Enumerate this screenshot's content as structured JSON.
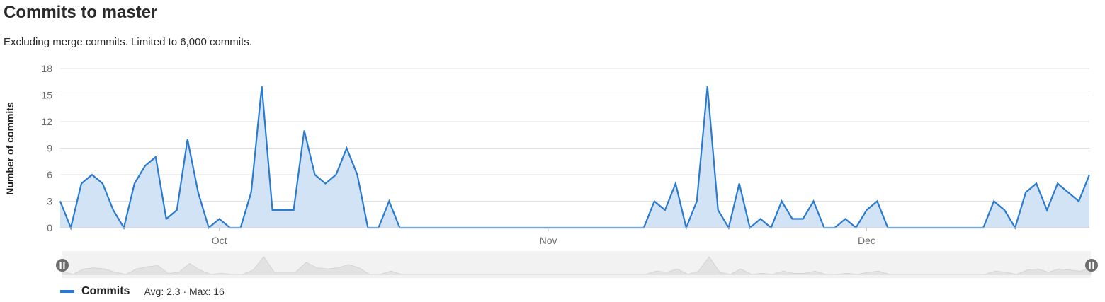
{
  "title": "Commits to master",
  "subtitle": "Excluding merge commits. Limited to 6,000 commits.",
  "colors": {
    "line": "#2a7ad0",
    "area": "#d2e3f5",
    "grid": "#e0e0e0",
    "navigator_bg": "#f2f2f2",
    "navigator_area": "#e2e2e2"
  },
  "legend": {
    "series_name": "Commits",
    "stats": "Avg: 2.3 · Max: 16"
  },
  "navigator": {
    "left_handle_icon": "pause-handle-icon",
    "right_handle_icon": "pause-handle-icon"
  },
  "chart_data": {
    "type": "area",
    "ylabel": "Number of commits",
    "xlabel": "",
    "ylim": [
      0,
      18
    ],
    "yticks": [
      0,
      3,
      6,
      9,
      12,
      15,
      18
    ],
    "x_start": "2019-09-16",
    "x_tick_labels": [
      {
        "label": "Oct",
        "date": "2019-10-01"
      },
      {
        "label": "Nov",
        "date": "2019-11-01"
      },
      {
        "label": "Dec",
        "date": "2019-12-01"
      }
    ],
    "grid": true,
    "legend_position": "bottom-left",
    "series": [
      {
        "name": "Commits",
        "values": [
          3,
          0,
          5,
          6,
          5,
          2,
          0,
          5,
          7,
          8,
          1,
          2,
          10,
          4,
          0,
          1,
          0,
          0,
          4,
          16,
          2,
          2,
          2,
          11,
          6,
          5,
          6,
          9,
          6,
          0,
          0,
          3,
          0,
          0,
          0,
          0,
          0,
          0,
          0,
          0,
          0,
          0,
          0,
          0,
          0,
          0,
          0,
          0,
          0,
          0,
          0,
          0,
          0,
          0,
          0,
          0,
          3,
          2,
          5,
          0,
          3,
          16,
          2,
          0,
          5,
          0,
          1,
          0,
          3,
          1,
          1,
          3,
          0,
          0,
          1,
          0,
          2,
          3,
          0,
          0,
          0,
          0,
          0,
          0,
          0,
          0,
          0,
          0,
          3,
          2,
          0,
          4,
          5,
          2,
          5,
          4,
          3,
          6
        ]
      }
    ]
  }
}
